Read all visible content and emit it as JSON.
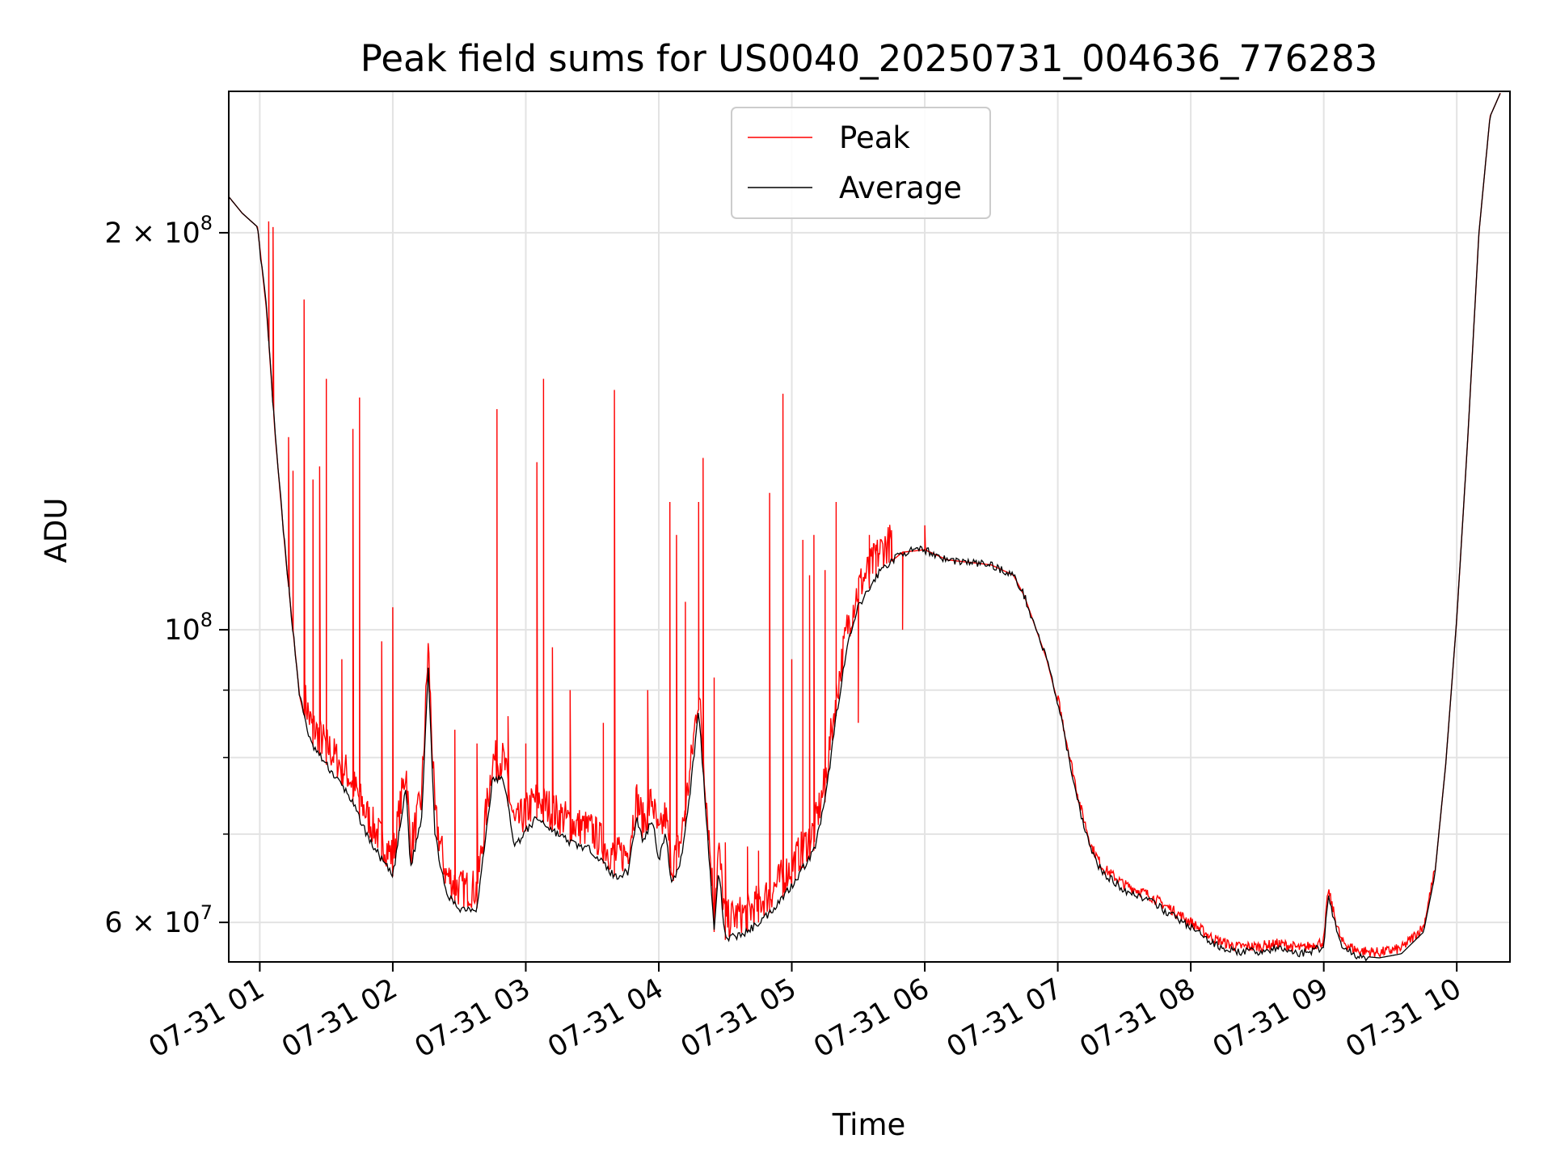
{
  "chart_data": {
    "type": "line",
    "title": "Peak field sums for US0040_20250731_004636_776283",
    "xlabel": "Time",
    "ylabel": "ADU",
    "y_scale": "log",
    "grid": true,
    "legend_position": "top-center",
    "xlim": [
      "07-31 00:46",
      "07-31 10:24"
    ],
    "ylim": [
      56000000,
      256000000
    ],
    "x_ticks": [
      {
        "value": "07-31 01:00",
        "label": "07-31 01"
      },
      {
        "value": "07-31 02:00",
        "label": "07-31 02"
      },
      {
        "value": "07-31 03:00",
        "label": "07-31 03"
      },
      {
        "value": "07-31 04:00",
        "label": "07-31 04"
      },
      {
        "value": "07-31 05:00",
        "label": "07-31 05"
      },
      {
        "value": "07-31 06:00",
        "label": "07-31 06"
      },
      {
        "value": "07-31 07:00",
        "label": "07-31 07"
      },
      {
        "value": "07-31 08:00",
        "label": "07-31 08"
      },
      {
        "value": "07-31 09:00",
        "label": "07-31 09"
      },
      {
        "value": "07-31 10:00",
        "label": "07-31 10"
      }
    ],
    "y_ticks": [
      {
        "value": 60000000,
        "base": "6 × 10",
        "exp": "7"
      },
      {
        "value": 100000000,
        "base": "10",
        "exp": "8"
      },
      {
        "value": 200000000,
        "base": "2 × 10",
        "exp": "8"
      }
    ],
    "y_minor_ticks": [
      70000000,
      80000000,
      90000000
    ],
    "series": [
      {
        "name": "Average",
        "color": "#000000",
        "points": [
          [
            "07-31 00:46",
            213000000
          ],
          [
            "07-31 00:52",
            207000000
          ],
          [
            "07-31 00:59",
            202000000
          ],
          [
            "07-31 01:03",
            175000000
          ],
          [
            "07-31 01:07",
            140000000
          ],
          [
            "07-31 01:12",
            112000000
          ],
          [
            "07-31 01:18",
            89000000
          ],
          [
            "07-31 01:23",
            82000000
          ],
          [
            "07-31 01:30",
            79000000
          ],
          [
            "07-31 01:40",
            75000000
          ],
          [
            "07-31 01:50",
            69000000
          ],
          [
            "07-31 02:00",
            65000000
          ],
          [
            "07-31 02:06",
            76000000
          ],
          [
            "07-31 02:08",
            66000000
          ],
          [
            "07-31 02:13",
            72000000
          ],
          [
            "07-31 02:16",
            94000000
          ],
          [
            "07-31 02:19",
            70000000
          ],
          [
            "07-31 02:24",
            63000000
          ],
          [
            "07-31 02:30",
            61500000
          ],
          [
            "07-31 02:38",
            61500000
          ],
          [
            "07-31 02:45",
            77000000
          ],
          [
            "07-31 02:50",
            77000000
          ],
          [
            "07-31 02:55",
            68500000
          ],
          [
            "07-31 02:59",
            70000000
          ],
          [
            "07-31 03:05",
            72000000
          ],
          [
            "07-31 03:12",
            70500000
          ],
          [
            "07-31 03:20",
            69000000
          ],
          [
            "07-31 03:30",
            68000000
          ],
          [
            "07-31 03:40",
            65000000
          ],
          [
            "07-31 03:46",
            65500000
          ],
          [
            "07-31 03:50",
            72000000
          ],
          [
            "07-31 03:53",
            69000000
          ],
          [
            "07-31 03:57",
            72000000
          ],
          [
            "07-31 04:00",
            67000000
          ],
          [
            "07-31 04:03",
            70000000
          ],
          [
            "07-31 04:06",
            64000000
          ],
          [
            "07-31 04:10",
            67000000
          ],
          [
            "07-31 04:14",
            75000000
          ],
          [
            "07-31 04:18",
            87000000
          ],
          [
            "07-31 04:22",
            70000000
          ],
          [
            "07-31 04:25",
            59000000
          ],
          [
            "07-31 04:27",
            66000000
          ],
          [
            "07-31 04:30",
            58200000
          ],
          [
            "07-31 04:40",
            59000000
          ],
          [
            "07-31 04:50",
            61000000
          ],
          [
            "07-31 05:00",
            64000000
          ],
          [
            "07-31 05:10",
            68000000
          ],
          [
            "07-31 05:15",
            74000000
          ],
          [
            "07-31 05:20",
            86000000
          ],
          [
            "07-31 05:25",
            97000000
          ],
          [
            "07-31 05:30",
            104000000
          ],
          [
            "07-31 05:40",
            111000000
          ],
          [
            "07-31 05:50",
            114500000
          ],
          [
            "07-31 06:00",
            115000000
          ],
          [
            "07-31 06:10",
            113000000
          ],
          [
            "07-31 06:20",
            112500000
          ],
          [
            "07-31 06:30",
            112000000
          ],
          [
            "07-31 06:40",
            110000000
          ],
          [
            "07-31 06:45",
            106000000
          ],
          [
            "07-31 06:55",
            95000000
          ],
          [
            "07-31 07:00",
            88000000
          ],
          [
            "07-31 07:05",
            80000000
          ],
          [
            "07-31 07:10",
            73000000
          ],
          [
            "07-31 07:15",
            68000000
          ],
          [
            "07-31 07:20",
            65500000
          ],
          [
            "07-31 07:30",
            63500000
          ],
          [
            "07-31 07:40",
            62500000
          ],
          [
            "07-31 07:50",
            61000000
          ],
          [
            "07-31 08:00",
            59500000
          ],
          [
            "07-31 08:10",
            57800000
          ],
          [
            "07-31 08:20",
            57000000
          ],
          [
            "07-31 08:30",
            57000000
          ],
          [
            "07-31 08:40",
            57300000
          ],
          [
            "07-31 08:50",
            56800000
          ],
          [
            "07-31 09:00",
            57500000
          ],
          [
            "07-31 09:02",
            63000000
          ],
          [
            "07-31 09:05",
            60000000
          ],
          [
            "07-31 09:08",
            57500000
          ],
          [
            "07-31 09:15",
            56600000
          ],
          [
            "07-31 09:25",
            56400000
          ],
          [
            "07-31 09:35",
            56800000
          ],
          [
            "07-31 09:45",
            59000000
          ],
          [
            "07-31 09:50",
            65000000
          ],
          [
            "07-31 09:55",
            79000000
          ],
          [
            "07-31 10:00",
            102000000
          ],
          [
            "07-31 10:05",
            140000000
          ],
          [
            "07-31 10:10",
            200000000
          ],
          [
            "07-31 10:15",
            245000000
          ],
          [
            "07-31 10:20",
            256000000
          ]
        ]
      },
      {
        "name": "Peak",
        "color": "#ff0000",
        "spikes": [
          [
            "07-31 01:04",
            204000000
          ],
          [
            "07-31 01:06",
            202000000
          ],
          [
            "07-31 01:13",
            140000000
          ],
          [
            "07-31 01:15",
            132000000
          ],
          [
            "07-31 01:20",
            178000000
          ],
          [
            "07-31 01:24",
            130000000
          ],
          [
            "07-31 01:27",
            133000000
          ],
          [
            "07-31 01:30",
            155000000
          ],
          [
            "07-31 01:37",
            95000000
          ],
          [
            "07-31 01:42",
            142000000
          ],
          [
            "07-31 01:45",
            150000000
          ],
          [
            "07-31 01:55",
            98000000
          ],
          [
            "07-31 02:00",
            104000000
          ],
          [
            "07-31 02:28",
            84000000
          ],
          [
            "07-31 02:38",
            82000000
          ],
          [
            "07-31 02:47",
            147000000
          ],
          [
            "07-31 02:52",
            86000000
          ],
          [
            "07-31 03:00",
            82000000
          ],
          [
            "07-31 03:05",
            134000000
          ],
          [
            "07-31 03:08",
            155000000
          ],
          [
            "07-31 03:12",
            97000000
          ],
          [
            "07-31 03:20",
            90000000
          ],
          [
            "07-31 03:35",
            85000000
          ],
          [
            "07-31 03:40",
            152000000
          ],
          [
            "07-31 03:55",
            90000000
          ],
          [
            "07-31 04:05",
            125000000
          ],
          [
            "07-31 04:08",
            118000000
          ],
          [
            "07-31 04:12",
            105000000
          ],
          [
            "07-31 04:18",
            125000000
          ],
          [
            "07-31 04:20",
            135000000
          ],
          [
            "07-31 04:25",
            92000000
          ],
          [
            "07-31 04:30",
            69000000
          ],
          [
            "07-31 04:40",
            68500000
          ],
          [
            "07-31 04:45",
            68000000
          ],
          [
            "07-31 04:50",
            127000000
          ],
          [
            "07-31 04:56",
            151000000
          ],
          [
            "07-31 05:00",
            95000000
          ],
          [
            "07-31 05:05",
            117000000
          ],
          [
            "07-31 05:08",
            110000000
          ],
          [
            "07-31 05:10",
            118000000
          ],
          [
            "07-31 05:15",
            111000000
          ],
          [
            "07-31 05:20",
            125000000
          ],
          [
            "07-31 05:30",
            85000000
          ],
          [
            "07-31 05:35",
            118000000
          ],
          [
            "07-31 05:38",
            116000000
          ],
          [
            "07-31 05:45",
            119000000
          ],
          [
            "07-31 05:50",
            100000000
          ],
          [
            "07-31 06:00",
            120000000
          ]
        ]
      }
    ]
  }
}
